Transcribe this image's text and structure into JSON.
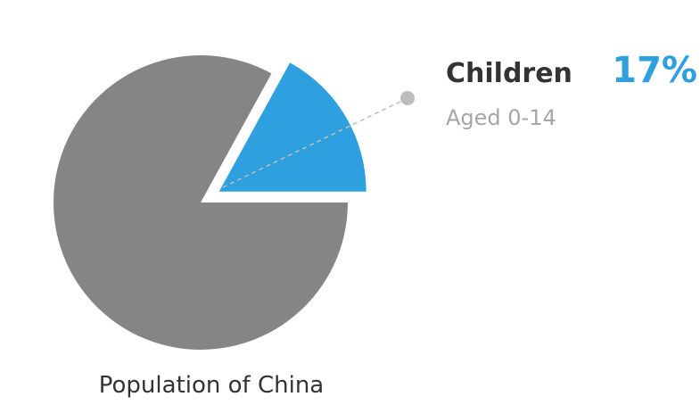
{
  "colors": {
    "highlight": "#2e9fdf",
    "rest": "#858585",
    "leader": "#bdbdbd"
  },
  "chart_data": {
    "type": "pie",
    "title": "Population of China",
    "slices": [
      {
        "label": "Children",
        "sublabel": "Aged 0-14",
        "percent_label": "17%",
        "value": 17,
        "color": "#2e9fdf",
        "exploded": true
      },
      {
        "label": "",
        "value": 83,
        "color": "#858585",
        "exploded": false
      }
    ]
  }
}
